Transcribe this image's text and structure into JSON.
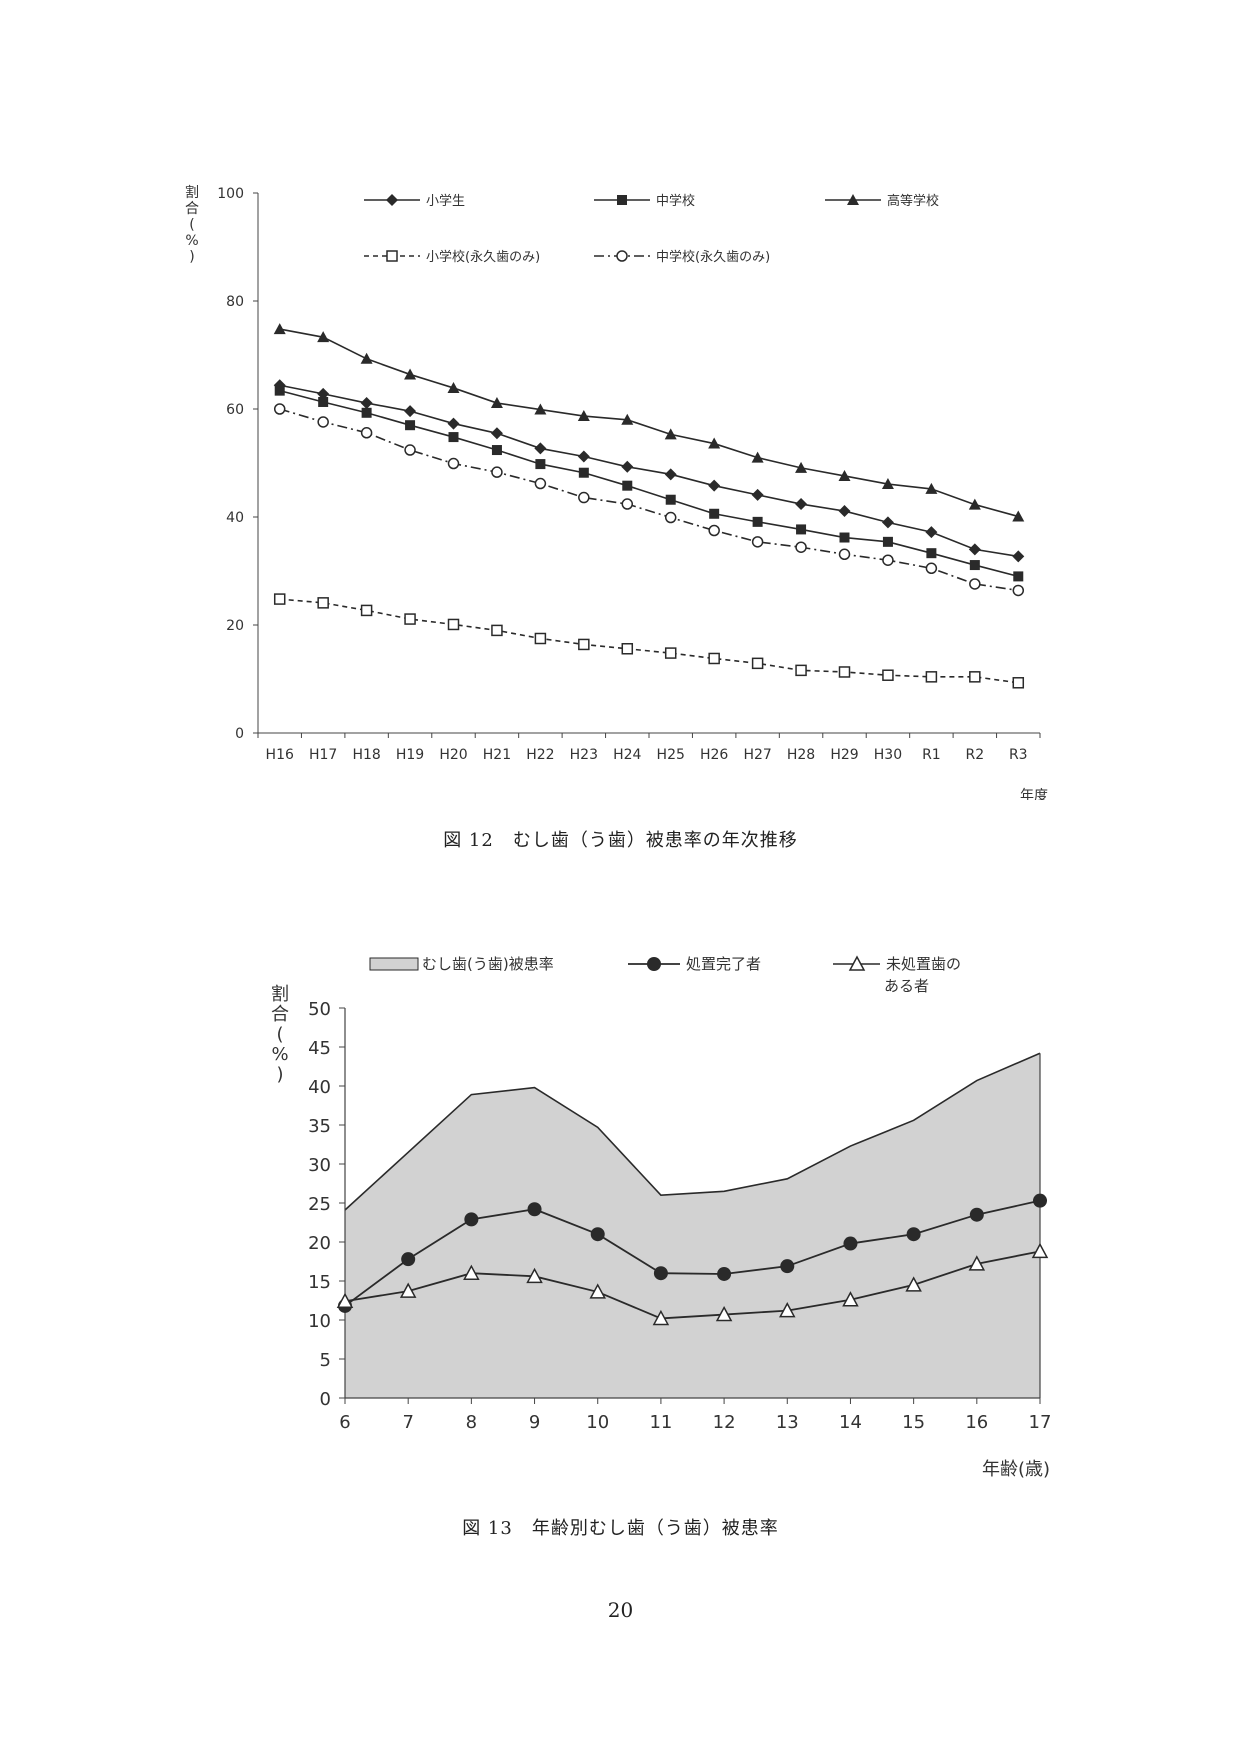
{
  "chart_data": [
    {
      "type": "line",
      "title": "",
      "ylabel": "割合(%)",
      "xlabel": "年度",
      "ylim": [
        0,
        100
      ],
      "yticks": [
        0,
        20,
        40,
        60,
        80,
        100
      ],
      "categories": [
        "H16",
        "H17",
        "H18",
        "H19",
        "H20",
        "H21",
        "H22",
        "H23",
        "H24",
        "H25",
        "H26",
        "H27",
        "H28",
        "H29",
        "H30",
        "R1",
        "R2",
        "R3"
      ],
      "legend_position": "top",
      "series": [
        {
          "name": "小学生",
          "marker": "diamond",
          "line": "solid",
          "values": [
            64.4,
            62.8,
            61.1,
            59.6,
            57.3,
            55.5,
            52.7,
            51.2,
            49.3,
            47.9,
            45.8,
            44.1,
            42.4,
            41.1,
            39.0,
            37.2,
            34.0,
            32.7
          ]
        },
        {
          "name": "中学校",
          "marker": "square",
          "line": "solid",
          "values": [
            63.4,
            61.3,
            59.3,
            57.0,
            54.8,
            52.4,
            49.8,
            48.2,
            45.8,
            43.2,
            40.6,
            39.1,
            37.7,
            36.2,
            35.4,
            33.3,
            31.1,
            29.0
          ]
        },
        {
          "name": "高等学校",
          "marker": "triangle",
          "line": "solid",
          "values": [
            74.8,
            73.3,
            69.3,
            66.4,
            63.9,
            61.1,
            59.9,
            58.7,
            58.0,
            55.3,
            53.6,
            51.0,
            49.1,
            47.6,
            46.1,
            45.2,
            42.3,
            40.1
          ]
        },
        {
          "name": "小学校(永久歯のみ)",
          "marker": "open-square",
          "line": "dashed",
          "values": [
            24.8,
            24.1,
            22.7,
            21.1,
            20.1,
            19.0,
            17.5,
            16.4,
            15.6,
            14.8,
            13.8,
            12.9,
            11.6,
            11.3,
            10.7,
            10.4,
            10.4,
            9.3
          ]
        },
        {
          "name": "中学校(永久歯のみ)",
          "marker": "open-circle",
          "line": "dashdot",
          "values": [
            60.0,
            57.6,
            55.6,
            52.4,
            49.9,
            48.3,
            46.2,
            43.6,
            42.4,
            39.9,
            37.5,
            35.4,
            34.4,
            33.1,
            32.0,
            30.5,
            27.6,
            26.4
          ]
        }
      ],
      "caption": "図 12　むし歯（う歯）被患率の年次推移"
    },
    {
      "type": "area",
      "title": "",
      "ylabel": "割合(%)",
      "xlabel": "年齢(歳)",
      "ylim": [
        0,
        50
      ],
      "yticks": [
        0,
        5,
        10,
        15,
        20,
        25,
        30,
        35,
        40,
        45,
        50
      ],
      "categories": [
        "6",
        "7",
        "8",
        "9",
        "10",
        "11",
        "12",
        "13",
        "14",
        "15",
        "16",
        "17"
      ],
      "legend_position": "top",
      "series": [
        {
          "name": "むし歯(う歯)被患率",
          "kind": "area",
          "values": [
            24.1,
            31.5,
            38.9,
            39.8,
            34.7,
            26.0,
            26.5,
            28.1,
            32.3,
            35.6,
            40.7,
            44.2
          ]
        },
        {
          "name": "処置完了者",
          "kind": "line",
          "marker": "filled-circle",
          "values": [
            11.8,
            17.8,
            22.9,
            24.2,
            21.0,
            16.0,
            15.9,
            16.9,
            19.8,
            21.0,
            23.5,
            25.3
          ]
        },
        {
          "name": "未処置歯の\nある者",
          "kind": "line",
          "marker": "open-triangle",
          "values": [
            12.4,
            13.7,
            16.0,
            15.6,
            13.6,
            10.2,
            10.7,
            11.2,
            12.6,
            14.5,
            17.2,
            18.8
          ]
        }
      ],
      "caption": "図 13　年齢別むし歯（う歯）被患率"
    }
  ],
  "page_number": "20",
  "colors": {
    "area_fill": "#d2d2d2",
    "line": "#2a2a2a",
    "axis": "#444444"
  }
}
